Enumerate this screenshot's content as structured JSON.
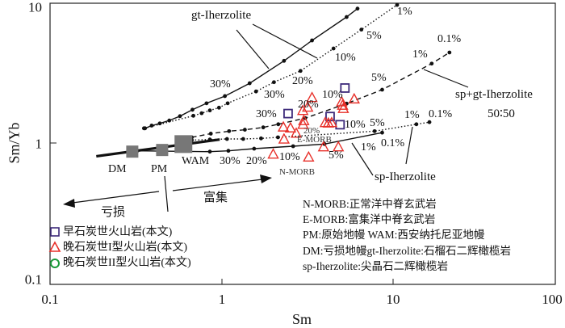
{
  "chart_data": {
    "type": "scatter",
    "title": "",
    "xlabel": "Sm",
    "ylabel": "Sm/Yb",
    "xscale": "log",
    "yscale": "log",
    "xlim": [
      0.1,
      100
    ],
    "ylim": [
      0.092,
      10.3
    ],
    "xticks": [
      "0.1",
      "1",
      "10",
      "100"
    ],
    "yticks": [
      "0.1",
      "1",
      "10"
    ],
    "grid": false,
    "legend_placement": "bottom-left",
    "curves": [
      {
        "name": "gt-Iherzolite",
        "style": "solid",
        "x": [
          0.356,
          0.389,
          0.434,
          0.493,
          0.569,
          0.673,
          0.813,
          1.04,
          1.45,
          2.3,
          3.35,
          5.33,
          6.17
        ],
        "y": [
          1.28,
          1.34,
          1.39,
          1.46,
          1.57,
          1.75,
          1.95,
          2.2,
          2.73,
          3.98,
          5.61,
          8.32,
          9.58
        ]
      },
      {
        "name": "gt-Iherzolite (dotted)",
        "style": "dotted",
        "x": [
          0.351,
          0.681,
          0.761,
          0.85,
          0.961,
          1.08,
          1.58,
          2.01,
          2.87,
          4.47,
          6.5,
          10.5
        ],
        "y": [
          1.28,
          1.58,
          1.65,
          1.73,
          1.81,
          1.95,
          2.38,
          2.78,
          3.36,
          4.9,
          6.73,
          10.2
        ]
      },
      {
        "name": "sp+gt-Iherzolite 50:50",
        "style": "dashed",
        "x": [
          0.667,
          0.861,
          1.1,
          1.36,
          1.74,
          2.13,
          3.06,
          5.33,
          8.59,
          16.7,
          21.2
        ],
        "y": [
          1.1,
          1.17,
          1.22,
          1.25,
          1.3,
          1.37,
          1.52,
          1.94,
          2.45,
          3.8,
          4.58
        ]
      },
      {
        "name": "sp-Iherzolite (dotted)",
        "style": "dotted",
        "x": [
          0.667,
          0.85,
          1.07,
          1.33,
          1.69,
          2.12,
          7.76,
          13.6,
          16.2
        ],
        "y": [
          1.05,
          1.06,
          1.07,
          1.07,
          1.08,
          1.1,
          1.22,
          1.37,
          1.42
        ]
      },
      {
        "name": "sp-Iherzolite",
        "style": "solid",
        "x": [
          0.321,
          0.85,
          1.09,
          1.54,
          2.6,
          3.96,
          8.59
        ],
        "y": [
          0.877,
          0.865,
          0.877,
          0.909,
          0.947,
          0.982,
          1.19
        ]
      },
      {
        "name": "mantle trend",
        "style": "thick",
        "x": [
          0.185,
          0.97
        ],
        "y": [
          0.8,
          1.06
        ]
      }
    ],
    "reference_points": [
      {
        "name": "DM",
        "x": 0.3,
        "y": 0.865
      },
      {
        "name": "PM",
        "x": 0.448,
        "y": 0.889
      },
      {
        "name": "WAM",
        "x": 0.596,
        "y": 0.982
      }
    ],
    "series": [
      {
        "name": "早石炭世火山岩(本文)",
        "marker": "square",
        "color": "#3d2a7a",
        "x": [
          5.21,
          2.43,
          4.27,
          4.88
        ],
        "y": [
          2.52,
          1.64,
          1.56,
          1.36
        ]
      },
      {
        "name": "晚石炭世I型火山岩(本文)",
        "marker": "triangle",
        "color": "#e8302a",
        "x": [
          3.35,
          5.9,
          4.99,
          5.05,
          5.1,
          2.96,
          3.16,
          3.0,
          2.97,
          2.28,
          2.51,
          2.71,
          2.3,
          4.0,
          4.17,
          4.36,
          3.91,
          4.77,
          1.99,
          3.2
        ],
        "y": [
          2.15,
          2.1,
          2.0,
          1.89,
          1.79,
          1.73,
          1.83,
          1.46,
          1.37,
          1.31,
          1.29,
          1.18,
          1.07,
          1.41,
          1.4,
          1.41,
          0.938,
          0.938,
          0.83,
          0.79
        ]
      },
      {
        "name": "晚石炭世II型火山岩(本文)",
        "marker": "circle",
        "color": "#1a9a3a",
        "x": [],
        "y": []
      }
    ],
    "annotations": {
      "gt_label": "gt-Iherzolite",
      "spgt_label": "sp+gt-Iherzolite",
      "spgt_ratio": "50∶50",
      "sp_label": "sp-Iherzolite",
      "dm": "DM",
      "pm": "PM",
      "wam": "WAM",
      "nmorb": "N-MORB",
      "emorb": "E-MORB",
      "enriched": "富集",
      "depleted": "亏损",
      "pct": [
        "1%",
        "5%",
        "10%",
        "30%",
        "20%",
        "30%",
        "30%",
        "10%",
        "20%",
        "0.1%",
        "1%",
        "5%",
        "1%",
        "0.1%",
        "10%",
        "5%",
        "20%",
        "1%",
        "0.1%",
        "5%",
        "30%",
        "20%",
        "10%"
      ]
    },
    "notes": [
      "N-MORB:正常洋中脊玄武岩",
      "E-MORB:富集洋中脊玄武岩",
      "PM:原始地幔 WAM:西安纳托尼亚地幔",
      "DM:亏损地幔gt-Iherzolite:石榴石二辉橄榄岩",
      "sp-Iherzolite:尖晶石二辉橄榄岩"
    ]
  }
}
